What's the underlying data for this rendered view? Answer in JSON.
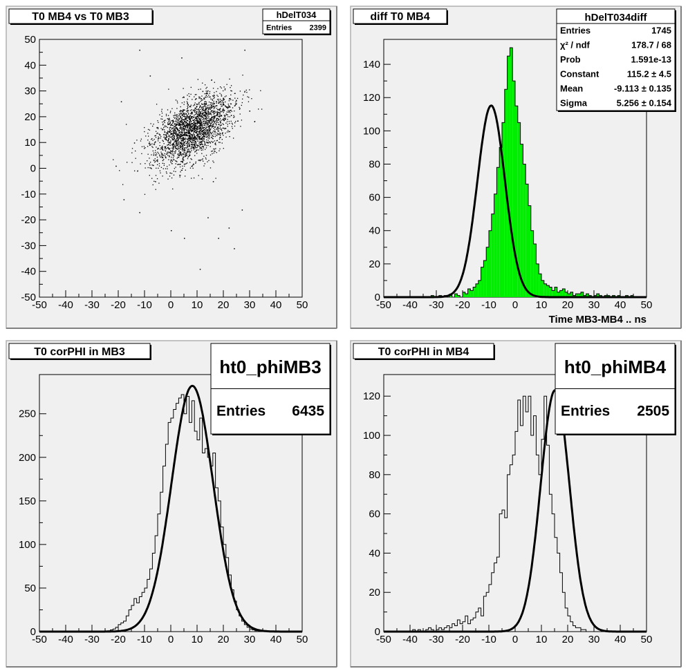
{
  "chart_data": [
    {
      "type": "scatter",
      "title": "T0 MB4 vs T0 MB3",
      "xlim": [
        -50,
        50
      ],
      "ylim": [
        -50,
        50
      ],
      "xticks": [
        -50,
        -40,
        -30,
        -20,
        -10,
        0,
        10,
        20,
        30,
        40,
        50
      ],
      "yticks": [
        -50,
        -40,
        -30,
        -20,
        -10,
        0,
        10,
        20,
        30,
        40,
        50
      ],
      "stats": {
        "name": "hDelT034",
        "rows": [
          {
            "label": "Entries",
            "value": "2399"
          }
        ]
      },
      "points": {
        "count": 2399,
        "center": [
          8,
          15
        ],
        "sigma_major": 9,
        "sigma_minor": 5,
        "corr_angle_deg": 40,
        "outliers": [
          [
            -12,
            46
          ],
          [
            28,
            46
          ],
          [
            -19,
            26
          ],
          [
            -21,
            1
          ],
          [
            -18,
            -12
          ],
          [
            -12,
            -17
          ],
          [
            0,
            -24
          ],
          [
            5,
            -27
          ],
          [
            14,
            -19
          ],
          [
            18,
            -27
          ],
          [
            22,
            -23
          ],
          [
            24,
            -31
          ],
          [
            27,
            -16
          ],
          [
            11,
            -39
          ],
          [
            4,
            43
          ],
          [
            12,
            30
          ],
          [
            16,
            -5
          ],
          [
            -6,
            -5
          ],
          [
            -14,
            10
          ],
          [
            -8,
            36
          ]
        ]
      }
    },
    {
      "type": "bar",
      "title": "diff T0 MB4",
      "xlabel": "Time MB3-MB4  ..  ns",
      "xlim": [
        -50,
        50
      ],
      "ylim": [
        0,
        155
      ],
      "xticks": [
        -50,
        -40,
        -30,
        -20,
        -10,
        0,
        10,
        20,
        30,
        40,
        50
      ],
      "yticks": [
        0,
        20,
        40,
        60,
        80,
        100,
        120,
        140
      ],
      "fill": "#00ee00",
      "stats": {
        "name": "hDelT034diff",
        "rows": [
          {
            "label": "Entries",
            "value": "1745"
          },
          {
            "label": "χ² / ndf",
            "value": "178.7 / 68"
          },
          {
            "label": "Prob",
            "value": "1.591e-13"
          },
          {
            "label": "Constant",
            "value": "115.2 ± 4.5"
          },
          {
            "label": "Mean",
            "value": "-9.113 ± 0.135"
          },
          {
            "label": "Sigma",
            "value": "5.256 ± 0.154"
          }
        ]
      },
      "bin_width": 1,
      "bins_x0": -50,
      "values": [
        0,
        0,
        0,
        0,
        0,
        0,
        0,
        0,
        0,
        0,
        0,
        0,
        0,
        0,
        0,
        0,
        0,
        0,
        1,
        0,
        0,
        1,
        0,
        1,
        0,
        1,
        0,
        2,
        1,
        0,
        3,
        2,
        5,
        4,
        6,
        8,
        10,
        18,
        22,
        30,
        40,
        50,
        62,
        78,
        90,
        105,
        125,
        145,
        150,
        130,
        115,
        105,
        92,
        80,
        68,
        55,
        40,
        32,
        20,
        14,
        10,
        8,
        7,
        6,
        4,
        6,
        3,
        4,
        5,
        3,
        2,
        3,
        1,
        2,
        2,
        3,
        1,
        2,
        1,
        0,
        1,
        2,
        1,
        0,
        1,
        1,
        0,
        1,
        0,
        1,
        0,
        0,
        1,
        0,
        1,
        0,
        0,
        0,
        0,
        0
      ],
      "fit": {
        "constant": 115.2,
        "mean": -9.113,
        "sigma": 5.256
      }
    },
    {
      "type": "bar",
      "title": "T0 corPHI in MB3",
      "xlim": [
        -50,
        50
      ],
      "ylim": [
        0,
        295
      ],
      "xticks": [
        -50,
        -40,
        -30,
        -20,
        -10,
        0,
        10,
        20,
        30,
        40,
        50
      ],
      "yticks": [
        0,
        50,
        100,
        150,
        200,
        250
      ],
      "stats": {
        "name": "ht0_phiMB3",
        "rows": [
          {
            "label": "Entries",
            "value": "6435"
          }
        ]
      },
      "bin_width": 1,
      "bins_x0": -50,
      "values": [
        0,
        0,
        0,
        0,
        0,
        0,
        0,
        0,
        0,
        0,
        0,
        0,
        0,
        0,
        0,
        0,
        0,
        0,
        0,
        0,
        0,
        0,
        0,
        0,
        0,
        0,
        1,
        2,
        3,
        5,
        8,
        10,
        12,
        18,
        25,
        30,
        38,
        33,
        40,
        45,
        50,
        60,
        72,
        90,
        110,
        135,
        160,
        190,
        215,
        240,
        245,
        255,
        262,
        268,
        272,
        250,
        270,
        240,
        265,
        230,
        220,
        245,
        205,
        210,
        200,
        190,
        205,
        165,
        150,
        120,
        100,
        85,
        65,
        48,
        35,
        25,
        18,
        12,
        8,
        5,
        3,
        2,
        1,
        1,
        0,
        0,
        0,
        0,
        0,
        0,
        0,
        0,
        0,
        0,
        0,
        0,
        0,
        0,
        0,
        0
      ],
      "fit": {
        "constant": 282,
        "mean": 8.2,
        "sigma": 7.9
      }
    },
    {
      "type": "bar",
      "title": "T0 corPHI in MB4",
      "xlim": [
        -50,
        50
      ],
      "ylim": [
        0,
        131
      ],
      "xticks": [
        -50,
        -40,
        -30,
        -20,
        -10,
        0,
        10,
        20,
        30,
        40,
        50
      ],
      "yticks": [
        0,
        20,
        40,
        60,
        80,
        100,
        120
      ],
      "stats": {
        "name": "ht0_phiMB4",
        "rows": [
          {
            "label": "Entries",
            "value": "2505"
          }
        ]
      },
      "bin_width": 1,
      "bins_x0": -50,
      "values": [
        0,
        0,
        0,
        0,
        0,
        0,
        0,
        0,
        0,
        0,
        0,
        1,
        0,
        1,
        0,
        0,
        1,
        2,
        1,
        0,
        1,
        2,
        1,
        2,
        3,
        2,
        4,
        3,
        6,
        4,
        5,
        8,
        4,
        6,
        7,
        10,
        12,
        8,
        18,
        20,
        24,
        30,
        35,
        38,
        60,
        62,
        58,
        80,
        85,
        90,
        102,
        118,
        105,
        120,
        112,
        120,
        100,
        110,
        90,
        80,
        98,
        120,
        95,
        70,
        60,
        48,
        40,
        30,
        20,
        12,
        8,
        5,
        3,
        2,
        2,
        1,
        1,
        0,
        0,
        0,
        0,
        0,
        0,
        0,
        0,
        0,
        0,
        0,
        0,
        0,
        0,
        0,
        0,
        0,
        0,
        0,
        0,
        0,
        0,
        0
      ],
      "fit": {
        "constant": 123,
        "mean": 15.2,
        "sigma": 5.5
      }
    }
  ]
}
